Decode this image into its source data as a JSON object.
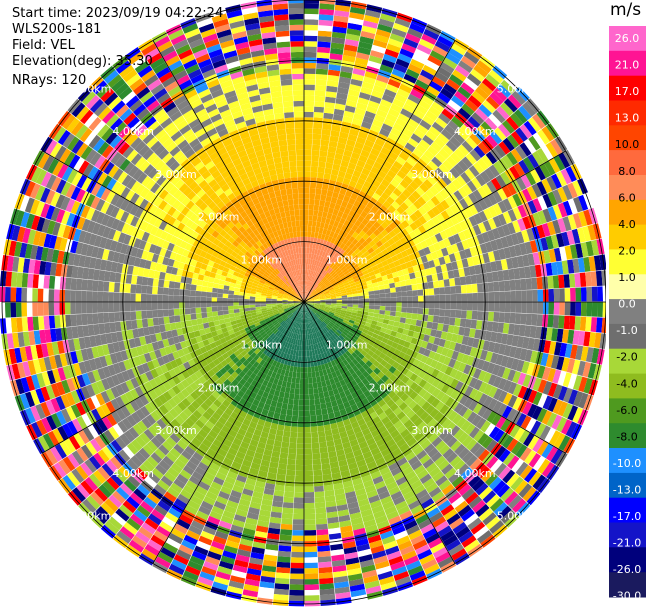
{
  "header": {
    "start_time": "Start time: 2023/09/19 04:22:24",
    "instrument": "WLS200s-181",
    "field": "Field: VEL",
    "elevation": "Elevation(deg): 35.30",
    "nrays": "NRays: 120"
  },
  "colorbar": {
    "unit": "m/s",
    "ticks": [
      "26.0",
      "21.0",
      "17.0",
      "13.0",
      "10.0",
      "8.0",
      "6.0",
      "4.0",
      "2.0",
      "1.0",
      "0.0",
      "-1.0",
      "-2.0",
      "-4.0",
      "-6.0",
      "-8.0",
      "-10.0",
      "-13.0",
      "-17.0",
      "-21.0",
      "-26.0",
      "-30.0"
    ],
    "colors": [
      "#ff66cc",
      "#ff1493",
      "#ff0000",
      "#ff2a00",
      "#ff4500",
      "#ff6a3d",
      "#ff8c59",
      "#ffa500",
      "#ffcc00",
      "#ffff33",
      "#ffffaa",
      "#808080",
      "#6e6e6e",
      "#a8d838",
      "#8fbc1f",
      "#4f9a1f",
      "#2e8b2e",
      "#1e90ff",
      "#0064c8",
      "#0000ff",
      "#1414c8",
      "#00007c",
      "#1a1a5e"
    ]
  },
  "chart_data": {
    "type": "ppi_polar",
    "field": "VEL",
    "units": "m/s",
    "nrays": 120,
    "elevation_deg": 35.3,
    "range_rings_km": [
      1.0,
      2.0,
      3.0,
      4.0,
      5.0
    ],
    "ring_labels": [
      "1.00km",
      "2.00km",
      "3.00km",
      "4.00km",
      "5.00km"
    ],
    "max_range_km": 5.0,
    "velocity_pattern": [
      {
        "sector": "north",
        "range_km": [
          0.0,
          1.0
        ],
        "value_ms": 8.0
      },
      {
        "sector": "north",
        "range_km": [
          1.0,
          2.0
        ],
        "value_ms": 5.0
      },
      {
        "sector": "north",
        "range_km": [
          2.0,
          3.2
        ],
        "value_ms": 2.0
      },
      {
        "sector": "north",
        "range_km": [
          3.2,
          3.8
        ],
        "value_ms": 0.5
      },
      {
        "sector": "south",
        "range_km": [
          0.0,
          1.0
        ],
        "value_ms": -8.0
      },
      {
        "sector": "south",
        "range_km": [
          1.0,
          2.0
        ],
        "value_ms": -5.0
      },
      {
        "sector": "south",
        "range_km": [
          2.0,
          3.2
        ],
        "value_ms": -2.5
      },
      {
        "sector": "south",
        "range_km": [
          3.2,
          3.8
        ],
        "value_ms": -0.5
      },
      {
        "sector": "any",
        "range_km": [
          3.8,
          5.0
        ],
        "value_ms": "noise"
      }
    ]
  }
}
